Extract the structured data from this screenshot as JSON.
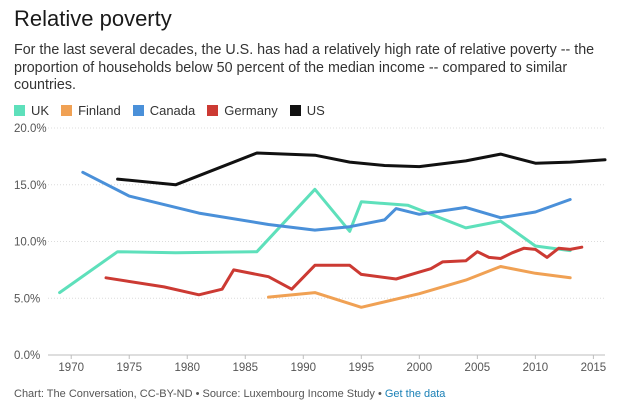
{
  "header": {
    "title": "Relative poverty",
    "subtitle": "For the last several decades, the U.S. has had a relatively high rate of relative poverty -- the proportion of households below 50 percent of the median income -- compared to similar countries."
  },
  "footer": {
    "credit": "Chart: The Conversation, CC-BY-ND • Source: Luxembourg Income Study •",
    "link_label": "Get the data"
  },
  "chart_data": {
    "type": "line",
    "title": "Relative poverty",
    "xlabel": "",
    "ylabel": "",
    "xlim": [
      1968,
      2016
    ],
    "ylim": [
      0,
      20
    ],
    "x_ticks": [
      1970,
      1975,
      1980,
      1985,
      1990,
      1995,
      2000,
      2005,
      2010,
      2015
    ],
    "y_ticks": [
      0,
      5,
      10,
      15,
      20
    ],
    "y_tick_labels": [
      "0.0%",
      "5.0%",
      "10.0%",
      "15.0%",
      "20.0%"
    ],
    "grid": "horizontal",
    "legend_position": "top-left",
    "series": [
      {
        "name": "UK",
        "color": "#5ee0bb",
        "points": [
          [
            1969,
            5.5
          ],
          [
            1974,
            9.1
          ],
          [
            1979,
            9.0
          ],
          [
            1986,
            9.1
          ],
          [
            1991,
            14.6
          ],
          [
            1994,
            10.9
          ],
          [
            1995,
            13.5
          ],
          [
            1999,
            13.2
          ],
          [
            2004,
            11.2
          ],
          [
            2007,
            11.8
          ],
          [
            2010,
            9.6
          ],
          [
            2013,
            9.2
          ]
        ]
      },
      {
        "name": "Finland",
        "color": "#f0a154",
        "points": [
          [
            1987,
            5.1
          ],
          [
            1991,
            5.5
          ],
          [
            1995,
            4.2
          ],
          [
            2000,
            5.4
          ],
          [
            2004,
            6.6
          ],
          [
            2007,
            7.8
          ],
          [
            2010,
            7.2
          ],
          [
            2013,
            6.8
          ]
        ]
      },
      {
        "name": "Canada",
        "color": "#4a90d9",
        "points": [
          [
            1971,
            16.1
          ],
          [
            1975,
            14.0
          ],
          [
            1981,
            12.5
          ],
          [
            1987,
            11.5
          ],
          [
            1991,
            11.0
          ],
          [
            1994,
            11.3
          ],
          [
            1997,
            11.9
          ],
          [
            1998,
            12.9
          ],
          [
            2000,
            12.4
          ],
          [
            2004,
            13.0
          ],
          [
            2007,
            12.1
          ],
          [
            2010,
            12.6
          ],
          [
            2013,
            13.7
          ]
        ]
      },
      {
        "name": "Germany",
        "color": "#cc3a33",
        "points": [
          [
            1973,
            6.8
          ],
          [
            1978,
            6.0
          ],
          [
            1981,
            5.3
          ],
          [
            1983,
            5.8
          ],
          [
            1984,
            7.5
          ],
          [
            1987,
            6.9
          ],
          [
            1989,
            5.8
          ],
          [
            1991,
            7.9
          ],
          [
            1994,
            7.9
          ],
          [
            1995,
            7.1
          ],
          [
            1998,
            6.7
          ],
          [
            2000,
            7.3
          ],
          [
            2001,
            7.6
          ],
          [
            2002,
            8.2
          ],
          [
            2004,
            8.3
          ],
          [
            2005,
            9.1
          ],
          [
            2006,
            8.6
          ],
          [
            2007,
            8.5
          ],
          [
            2008,
            9.0
          ],
          [
            2009,
            9.4
          ],
          [
            2010,
            9.3
          ],
          [
            2011,
            8.6
          ],
          [
            2012,
            9.4
          ],
          [
            2013,
            9.3
          ],
          [
            2014,
            9.5
          ]
        ]
      },
      {
        "name": "US",
        "color": "#111111",
        "points": [
          [
            1974,
            15.5
          ],
          [
            1979,
            15.0
          ],
          [
            1986,
            17.8
          ],
          [
            1991,
            17.6
          ],
          [
            1994,
            17.0
          ],
          [
            1997,
            16.7
          ],
          [
            2000,
            16.6
          ],
          [
            2004,
            17.1
          ],
          [
            2007,
            17.7
          ],
          [
            2010,
            16.9
          ],
          [
            2013,
            17.0
          ],
          [
            2016,
            17.2
          ]
        ]
      }
    ]
  }
}
